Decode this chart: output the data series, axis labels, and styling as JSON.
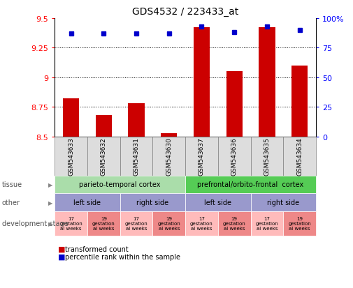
{
  "title": "GDS4532 / 223433_at",
  "samples": [
    "GSM543633",
    "GSM543632",
    "GSM543631",
    "GSM543630",
    "GSM543637",
    "GSM543636",
    "GSM543635",
    "GSM543634"
  ],
  "transformed_counts": [
    8.82,
    8.68,
    8.78,
    8.53,
    9.42,
    9.05,
    9.42,
    9.1
  ],
  "percentile_ranks": [
    87,
    87,
    87,
    87,
    93,
    88,
    93,
    90
  ],
  "ylim_left": [
    8.5,
    9.5
  ],
  "ylim_right": [
    0,
    100
  ],
  "yticks_left": [
    8.5,
    8.75,
    9.0,
    9.25,
    9.5
  ],
  "ytick_labels_left": [
    "8.5",
    "8.75",
    "9",
    "9.25",
    "9.5"
  ],
  "yticks_right": [
    0,
    25,
    50,
    75,
    100
  ],
  "ytick_labels_right": [
    "0",
    "25",
    "50",
    "75",
    "100%"
  ],
  "bar_color": "#cc0000",
  "dot_color": "#0000cc",
  "tissue_row": [
    {
      "span": [
        0,
        4
      ],
      "label": "parieto-temporal cortex",
      "color": "#aaddaa"
    },
    {
      "span": [
        4,
        8
      ],
      "label": "prefrontal/orbito-frontal  cortex",
      "color": "#55cc55"
    }
  ],
  "other_row": [
    {
      "span": [
        0,
        2
      ],
      "label": "left side",
      "color": "#9999cc"
    },
    {
      "span": [
        2,
        4
      ],
      "label": "right side",
      "color": "#9999cc"
    },
    {
      "span": [
        4,
        6
      ],
      "label": "left side",
      "color": "#9999cc"
    },
    {
      "span": [
        6,
        8
      ],
      "label": "right side",
      "color": "#9999cc"
    }
  ],
  "dev_row": [
    {
      "col": 0,
      "label": "17\ngestation\nal weeks",
      "color": "#ffbbbb"
    },
    {
      "col": 1,
      "label": "19\ngestation\nal weeks",
      "color": "#ee8888"
    },
    {
      "col": 2,
      "label": "17\ngestation\nal weeks",
      "color": "#ffbbbb"
    },
    {
      "col": 3,
      "label": "19\ngestation\nal weeks",
      "color": "#ee8888"
    },
    {
      "col": 4,
      "label": "17\ngestation\nal weeks",
      "color": "#ffbbbb"
    },
    {
      "col": 5,
      "label": "19\ngestation\nal weeks",
      "color": "#ee8888"
    },
    {
      "col": 6,
      "label": "17\ngestation\nal weeks",
      "color": "#ffbbbb"
    },
    {
      "col": 7,
      "label": "19\ngestation\nal weeks",
      "color": "#ee8888"
    }
  ],
  "legend_bar_label": "transformed count",
  "legend_dot_label": "percentile rank within the sample",
  "hgrid_lines": [
    8.75,
    9.0,
    9.25
  ]
}
